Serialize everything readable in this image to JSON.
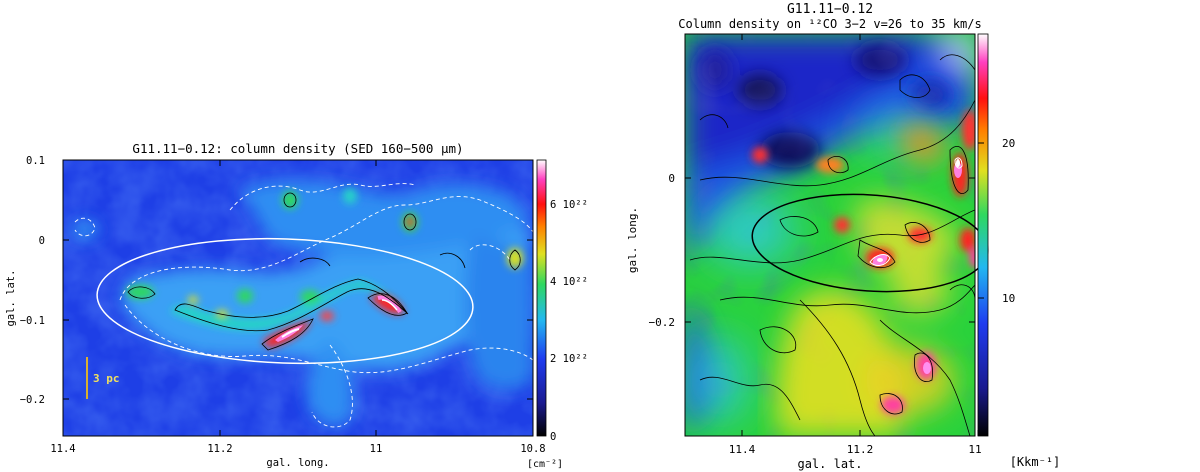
{
  "chart_data": [
    {
      "type": "heatmap",
      "title": "G11.11−0.12: column density (SED 160−500 μm)",
      "xlabel": "gal. long.",
      "ylabel": "gal. lat.",
      "xlim": [
        11.4,
        10.8
      ],
      "ylim": [
        -0.25,
        0.1
      ],
      "xticks": [
        "11.4",
        "11.2",
        "11",
        "10.8"
      ],
      "yticks": [
        "0.1",
        "0",
        "−0.1",
        "−0.2"
      ],
      "colorbar": {
        "range": [
          0,
          7.2e+22
        ],
        "ticks": [
          "0",
          "2 10²²",
          "4 10²²",
          "6 10²²"
        ],
        "unit": "[cm⁻²]"
      },
      "scalebar_label": "3 pc",
      "filament_peaks": [
        {
          "l": 11.13,
          "b": -0.13
        },
        {
          "l": 11.08,
          "b": -0.11
        },
        {
          "l": 10.98,
          "b": -0.09
        },
        {
          "l": 11.21,
          "b": -0.1
        },
        {
          "l": 11.27,
          "b": -0.07
        },
        {
          "l": 10.95,
          "b": 0.02
        }
      ],
      "ellipse": {
        "center_l": 11.1,
        "center_b": -0.09,
        "color": "#ffffff"
      }
    },
    {
      "type": "heatmap",
      "title": "G11.11−0.12",
      "subtitle": "Column density on ¹²CO 3−2 v=26 to 35 km/s",
      "xlabel": "gal. lat.",
      "ylabel": "gal. long.",
      "xlim": [
        11.5,
        10.87
      ],
      "ylim": [
        -0.33,
        0.14
      ],
      "xticks": [
        "11.4",
        "11.2",
        "11"
      ],
      "yticks": [
        "0",
        "−0.2"
      ],
      "colorbar": {
        "range": [
          2,
          27
        ],
        "ticks": [
          "10",
          "20"
        ],
        "unit": "[Kkm⁻¹]"
      },
      "peaks": [
        {
          "l": 11.12,
          "b": -0.09
        },
        {
          "l": 10.96,
          "b": 0.01
        },
        {
          "l": 10.98,
          "b": -0.07
        },
        {
          "l": 11.06,
          "b": -0.27
        },
        {
          "l": 11.3,
          "b": 0.01
        },
        {
          "l": 11.2,
          "b": -0.31
        },
        {
          "l": 11.13,
          "b": -0.03
        }
      ],
      "ellipse": {
        "center_l": 11.11,
        "center_b": -0.09,
        "color": "#000000"
      }
    }
  ]
}
